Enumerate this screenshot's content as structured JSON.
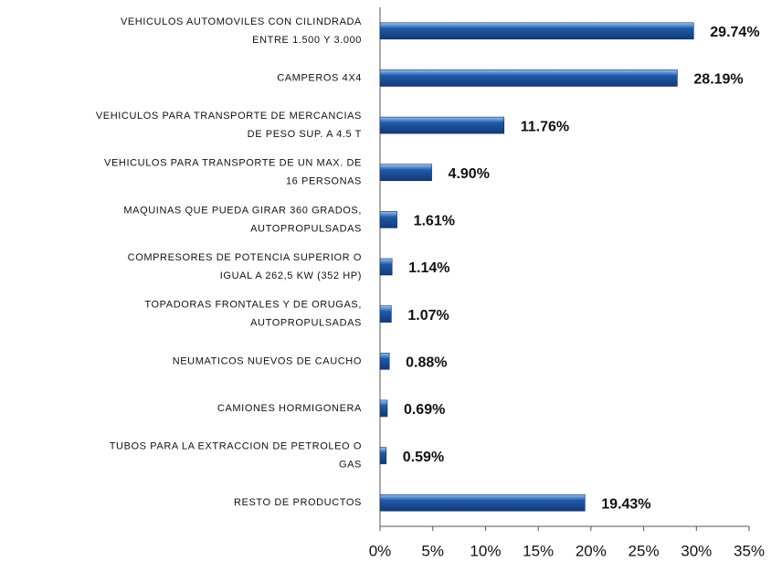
{
  "chart_data": {
    "type": "bar",
    "orientation": "horizontal",
    "categories": [
      "VEHICULOS AUTOMOVILES  CON CILINDRADA\nENTRE 1.500 Y 3.000",
      "CAMPEROS 4X4",
      "VEHICULOS PARA TRANSPORTE  DE MERCANCIAS\nDE PESO SUP. A 4.5 T",
      "VEHICULOS PARA TRANSPORTE  DE UN MAX. DE\n16 PERSONAS",
      "MAQUINAS QUE PUEDA GIRAR 360 GRADOS,\nAUTOPROPULSADAS",
      "COMPRESORES  DE POTENCIA SUPERIOR  O\nIGUAL A 262,5 KW (352 HP)",
      "TOPADORAS FRONTALES  Y DE ORUGAS,\nAUTOPROPULSADAS",
      "NEUMATICOS  NUEVOS  DE CAUCHO",
      "CAMIONES HORMIGONERA",
      "TUBOS PARA LA EXTRACCION  DE PETROLEO  O\nGAS",
      "RESTO DE PRODUCTOS"
    ],
    "values": [
      29.74,
      28.19,
      11.76,
      4.9,
      1.61,
      1.14,
      1.07,
      0.88,
      0.69,
      0.59,
      19.43
    ],
    "value_labels": [
      "29.74%",
      "28.19%",
      "11.76%",
      "4.90%",
      "1.61%",
      "1.14%",
      "1.07%",
      "0.88%",
      "0.69%",
      "0.59%",
      "19.43%"
    ],
    "color": "#1f5aa8",
    "xlim": [
      0,
      35
    ],
    "xticks": [
      {
        "value": 0,
        "label": "0%"
      },
      {
        "value": 5,
        "label": "5%"
      },
      {
        "value": 10,
        "label": "10%"
      },
      {
        "value": 15,
        "label": "15%"
      },
      {
        "value": 20,
        "label": "20%"
      },
      {
        "value": 25,
        "label": "25%"
      },
      {
        "value": 30,
        "label": "30%"
      },
      {
        "value": 35,
        "label": "35%"
      }
    ]
  }
}
